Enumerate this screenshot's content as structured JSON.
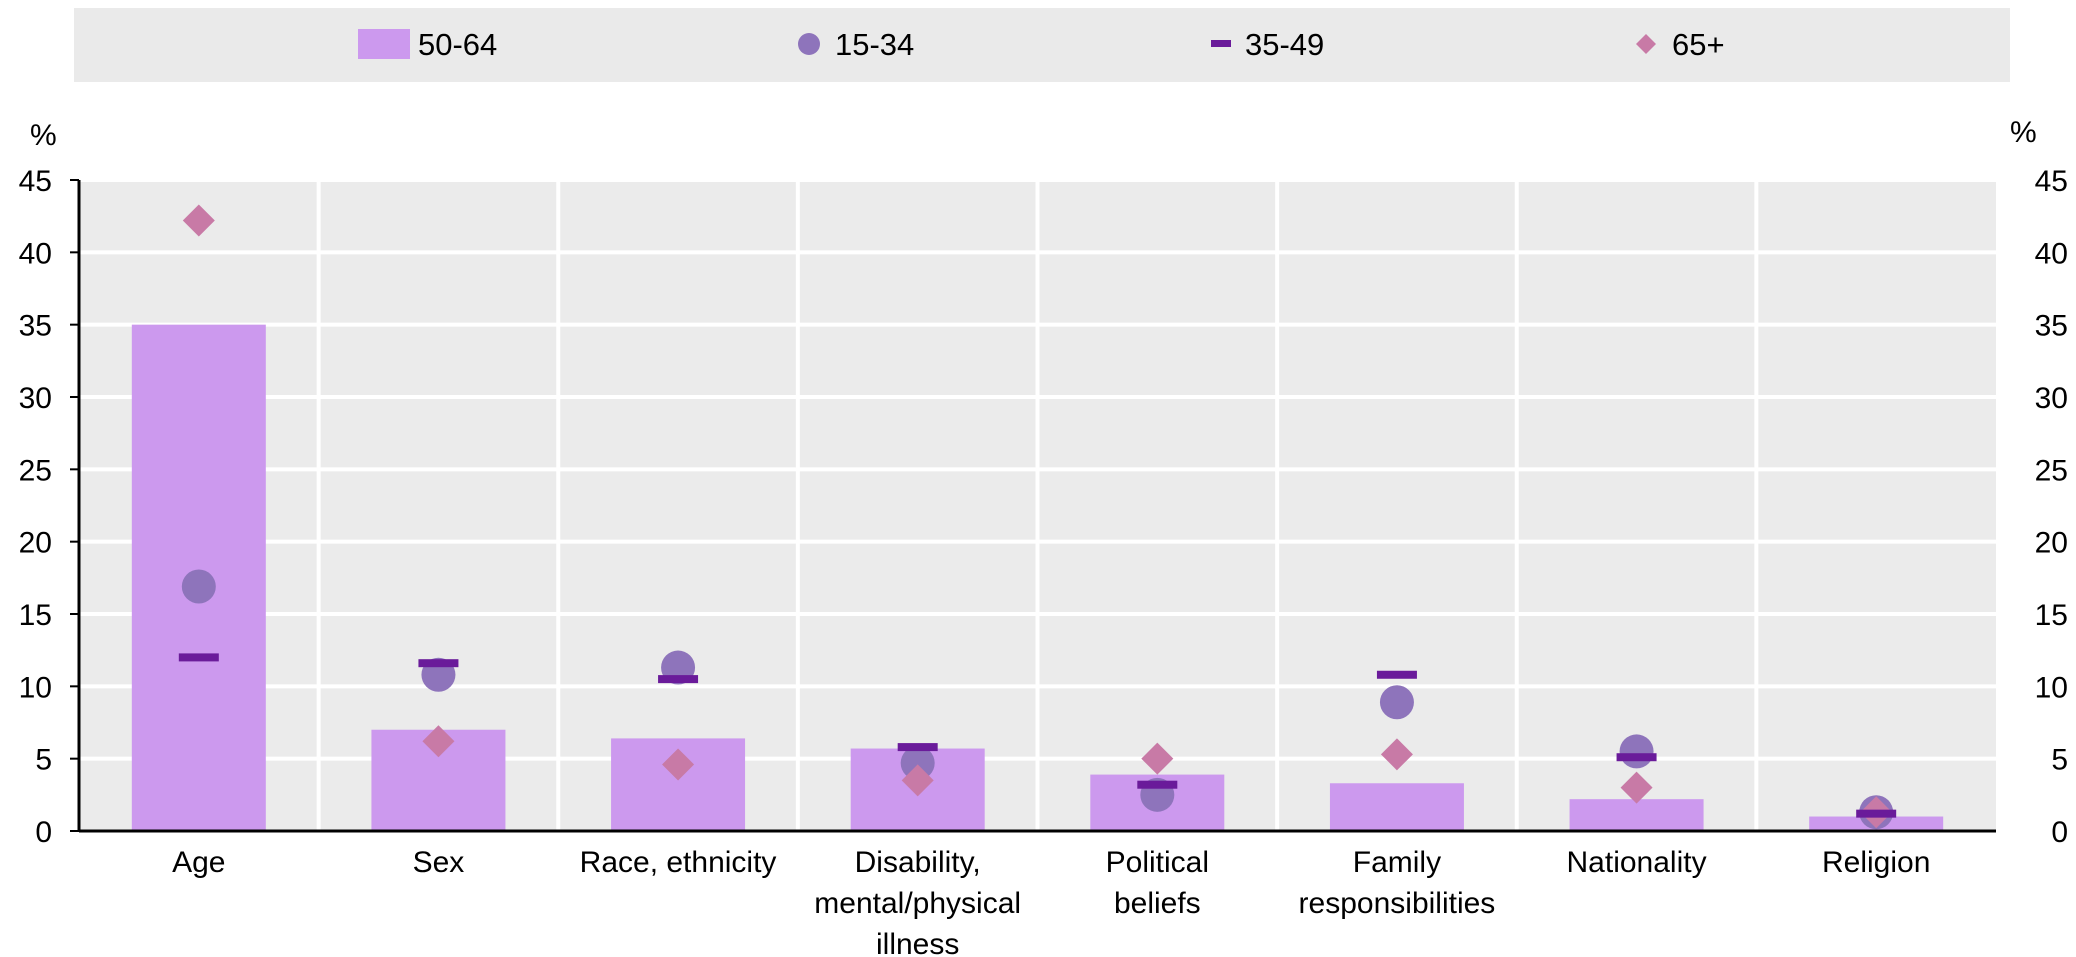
{
  "chart_data": {
    "type": "bar",
    "y_unit": "%",
    "ylim": [
      0,
      45
    ],
    "yticks": [
      0,
      5,
      10,
      15,
      20,
      25,
      30,
      35,
      40,
      45
    ],
    "grid": true,
    "legend_placement": "top",
    "categories": [
      [
        "Age"
      ],
      [
        "Sex"
      ],
      [
        "Race, ethnicity"
      ],
      [
        "Disability,",
        "mental/physical",
        "illness"
      ],
      [
        "Political",
        "beliefs"
      ],
      [
        "Family",
        "responsibilities"
      ],
      [
        "Nationality"
      ],
      [
        "Religion"
      ]
    ],
    "series": [
      {
        "name": "50-64",
        "kind": "bar",
        "color": "#cc99ee",
        "values": [
          35.0,
          7.0,
          6.4,
          5.7,
          3.9,
          3.3,
          2.2,
          1.0
        ]
      },
      {
        "name": "15-34",
        "kind": "circle",
        "color": "#8e74bb",
        "values": [
          16.9,
          10.8,
          11.3,
          4.7,
          2.5,
          8.9,
          5.5,
          1.3
        ]
      },
      {
        "name": "35-49",
        "kind": "dash",
        "color": "#6a1b9a",
        "values": [
          12.0,
          11.6,
          10.5,
          5.8,
          3.2,
          10.8,
          5.1,
          1.2
        ]
      },
      {
        "name": "65+",
        "kind": "diamond",
        "color": "#c87aa6",
        "values": [
          42.2,
          6.2,
          4.6,
          3.5,
          5.0,
          5.3,
          3.0,
          1.3
        ]
      }
    ]
  }
}
